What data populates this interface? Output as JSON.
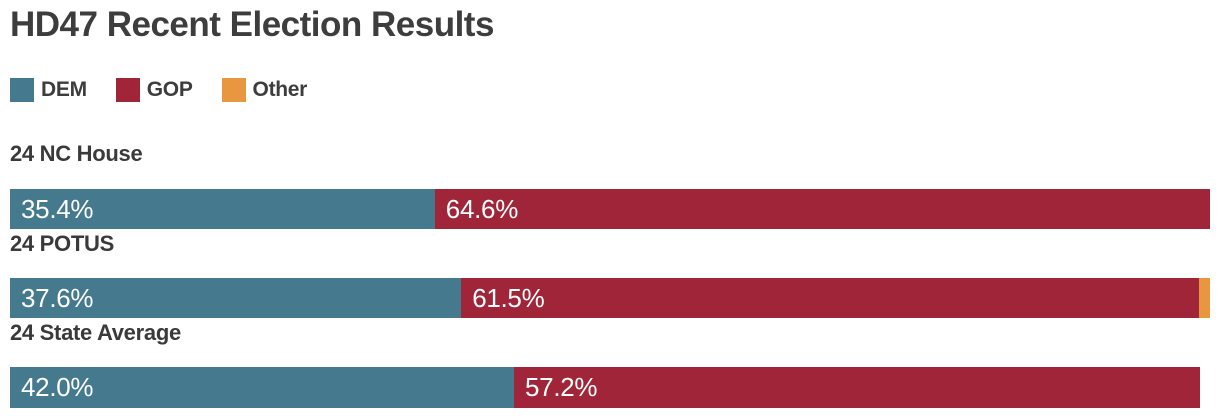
{
  "title": "HD47 Recent Election Results",
  "colors": {
    "dem": "#44798e",
    "gop": "#a02539",
    "other": "#e8963f",
    "heading_text": "#3d3d3d",
    "bar_value_text": "#ffffff",
    "background": "#ffffff"
  },
  "legend": [
    {
      "label": "DEM",
      "color": "#44798e"
    },
    {
      "label": "GOP",
      "color": "#a02539"
    },
    {
      "label": "Other",
      "color": "#e8963f"
    }
  ],
  "chart_data": {
    "type": "bar",
    "orientation": "horizontal",
    "stacked": true,
    "unit": "%",
    "xlim": [
      0,
      100
    ],
    "grid": false,
    "legend_position": "top-left",
    "title": "HD47 Recent Election Results",
    "categories": [
      "24 NC House",
      "24 POTUS",
      "24 State Average"
    ],
    "series": [
      {
        "name": "DEM",
        "color": "#44798e",
        "values": [
          35.4,
          37.6,
          42.0
        ]
      },
      {
        "name": "GOP",
        "color": "#a02539",
        "values": [
          64.6,
          61.5,
          57.2
        ]
      },
      {
        "name": "Other",
        "color": "#e8963f",
        "values": [
          0,
          0.9,
          0
        ]
      }
    ],
    "segment_labels": [
      {
        "DEM": "35.4%",
        "GOP": "64.6%",
        "Other": ""
      },
      {
        "DEM": "37.6%",
        "GOP": "61.5%",
        "Other": ""
      },
      {
        "DEM": "42.0%",
        "GOP": "57.2%",
        "Other": ""
      }
    ]
  }
}
